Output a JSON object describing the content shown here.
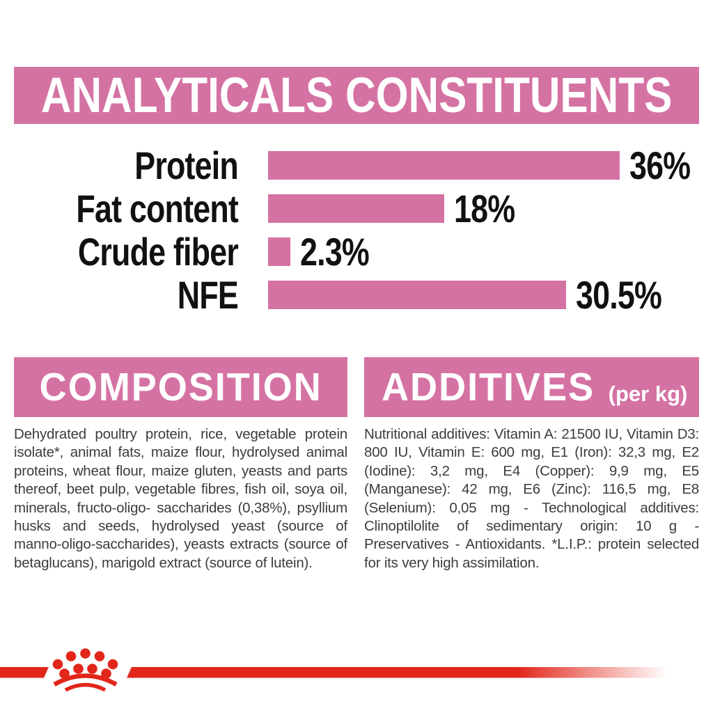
{
  "colors": {
    "pink": "#d572a4",
    "red": "#e2261a",
    "body_text": "#3c3c3c",
    "label_text": "#111111"
  },
  "analyticals": {
    "title": "ANALYTICALS CONSTITUENTS"
  },
  "chart_data": {
    "type": "bar",
    "orientation": "horizontal",
    "title": "ANALYTICALS CONSTITUENTS",
    "categories": [
      "Protein",
      "Fat content",
      "Crude fiber",
      "NFE"
    ],
    "values": [
      36,
      18,
      2.3,
      30.5
    ],
    "value_labels": [
      "36%",
      "18%",
      "2.3%",
      "30.5%"
    ],
    "unit": "%",
    "xlim": [
      0,
      45
    ],
    "bar_color": "#d572a4",
    "grid": false,
    "legend": false
  },
  "composition": {
    "title": "COMPOSITION",
    "body": "Dehydrated poultry protein, rice, vegetable protein isolate*, animal fats, maize flour, hydrolysed animal proteins, wheat flour, maize gluten, yeasts and parts thereof, beet pulp, vegetable fibres, fish oil, soya oil, minerals, fructo-oligo- saccharides (0,38%), psyllium husks and seeds, hydrolysed yeast (source of manno-oligo-saccharides), yeasts extracts (source of betaglucans), marigold extract (source of lutein)."
  },
  "additives": {
    "title": "ADDITIVES",
    "unit": "(per kg)",
    "body": "Nutritional additives: Vitamin A: 21500 IU, Vitamin D3: 800 IU, Vitamin E: 600 mg, E1 (Iron): 32,3 mg, E2 (Iodine): 3,2 mg, E4 (Copper): 9,9 mg, E5 (Manganese): 42 mg, E6 (Zinc): 116,5 mg, E8 (Selenium): 0,05 mg - Technological additives: Clinoptilolite of sedimentary origin: 10 g - Preservatives - Antioxidants. *L.I.P.: protein selected for its very high assimilation."
  },
  "logo": {
    "icon": "royal-canin-crown"
  }
}
